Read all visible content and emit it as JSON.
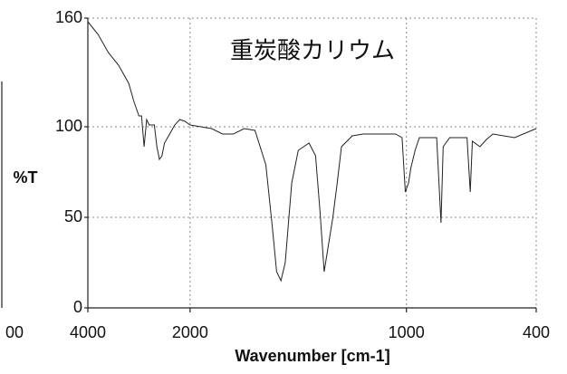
{
  "chart_data": {
    "type": "line",
    "title": "重炭酸カリウム",
    "x_label": "Wavenumber [cm-1]",
    "y_label": "%T",
    "cropped_tick": "00",
    "xscale": "split",
    "xlim": [
      4000,
      400
    ],
    "xticks": [
      4000,
      2000,
      1000,
      400
    ],
    "ylim": [
      0,
      160
    ],
    "yticks": [
      0,
      50,
      100,
      160
    ],
    "grid": true,
    "x": [
      4000,
      3800,
      3600,
      3400,
      3200,
      3100,
      3000,
      2950,
      2900,
      2850,
      2800,
      2700,
      2650,
      2600,
      2550,
      2500,
      2400,
      2300,
      2200,
      2100,
      2000,
      1900,
      1850,
      1800,
      1750,
      1700,
      1650,
      1620,
      1600,
      1580,
      1560,
      1530,
      1500,
      1450,
      1420,
      1400,
      1380,
      1360,
      1340,
      1320,
      1300,
      1250,
      1200,
      1100,
      1050,
      1020,
      1005,
      990,
      980,
      960,
      940,
      880,
      860,
      840,
      830,
      800,
      720,
      705,
      695,
      660,
      630,
      600,
      500,
      400
    ],
    "series": [
      {
        "name": "%T",
        "color": "#222222",
        "values": [
          158,
          151,
          141,
          134,
          124,
          114,
          106,
          106,
          89,
          104,
          101,
          101,
          89,
          82,
          84,
          91,
          96,
          101,
          104,
          103,
          101,
          99,
          96,
          96,
          99,
          98,
          79,
          45,
          20,
          15,
          25,
          69,
          87,
          91,
          84,
          54,
          20,
          35,
          50,
          69,
          89,
          95,
          96,
          96,
          96,
          94,
          64,
          69,
          77,
          87,
          94,
          94,
          94,
          47,
          89,
          94,
          94,
          64,
          92,
          89,
          93,
          96,
          94,
          99
        ]
      }
    ]
  }
}
